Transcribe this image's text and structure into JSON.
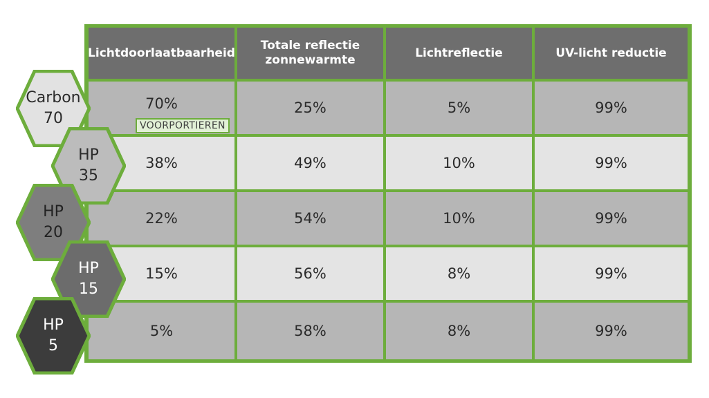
{
  "colors": {
    "accent_green": "#6dad3c",
    "header_bg": "#6e6e6e",
    "row_dark": "#b6b6b6",
    "row_light": "#e4e4e4",
    "badge_bg": "#e2f0d6"
  },
  "table": {
    "headers": [
      "Lichtdoorlaatbaarheid",
      "Totale reflectie zonnewarmte",
      "Lichtreflectie",
      "UV-licht reductie"
    ],
    "rows": [
      {
        "variant_line1": "Carbon",
        "variant_line2": "70",
        "hex_color": "#e2e2e2",
        "text_color": "#2b2b2b",
        "values": [
          "70%",
          "25%",
          "5%",
          "99%"
        ]
      },
      {
        "variant_line1": "HP",
        "variant_line2": "35",
        "hex_color": "#bcbcbc",
        "text_color": "#2b2b2b",
        "values": [
          "38%",
          "49%",
          "10%",
          "99%"
        ]
      },
      {
        "variant_line1": "HP",
        "variant_line2": "20",
        "hex_color": "#7e7e7e",
        "text_color": "#222222",
        "values": [
          "22%",
          "54%",
          "10%",
          "99%"
        ]
      },
      {
        "variant_line1": "HP",
        "variant_line2": "15",
        "hex_color": "#6c6c6c",
        "text_color": "#ffffff",
        "values": [
          "15%",
          "56%",
          "8%",
          "99%"
        ]
      },
      {
        "variant_line1": "HP",
        "variant_line2": "5",
        "hex_color": "#3c3c3c",
        "text_color": "#ffffff",
        "values": [
          "5%",
          "58%",
          "8%",
          "99%"
        ]
      }
    ],
    "badge": "VOORPORTIEREN"
  }
}
